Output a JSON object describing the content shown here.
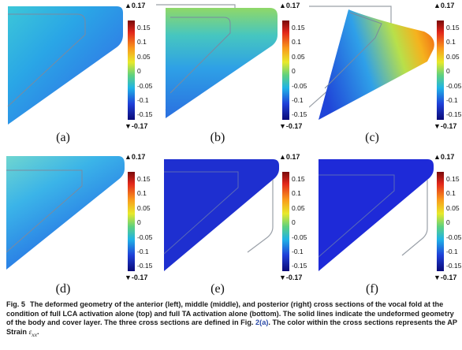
{
  "panels": [
    {
      "label": "(a)"
    },
    {
      "label": "(b)"
    },
    {
      "label": "(c)"
    },
    {
      "label": "(d)"
    },
    {
      "label": "(e)"
    },
    {
      "label": "(f)"
    }
  ],
  "colorbar": {
    "max_label": "▲0.17",
    "min_label": "▼-0.17",
    "ticks": [
      "0.15",
      "0.1",
      "0.05",
      "0",
      "-0.05",
      "-0.1",
      "-0.15"
    ],
    "colors": [
      "#7a0a0a",
      "#e2271b",
      "#f99a1c",
      "#e8e92a",
      "#5fd17e",
      "#20b3e6",
      "#1f3fd8",
      "#0a0a78"
    ]
  },
  "caption": {
    "fig_no": "Fig. 5",
    "text": "The deformed geometry of the anterior (left), middle (middle), and posterior (right) cross sections of the vocal fold at the condition of full LCA activation alone (top) and full TA activation alone (bottom). The solid lines indicate the undeformed geometry of the body and cover layer. The three cross sections are defined in Fig. ",
    "ref": "2(a)",
    "text_after": ". The color within the cross sections represents the AP Strain ",
    "symbol": "ε",
    "symbol_sub": "xx"
  }
}
